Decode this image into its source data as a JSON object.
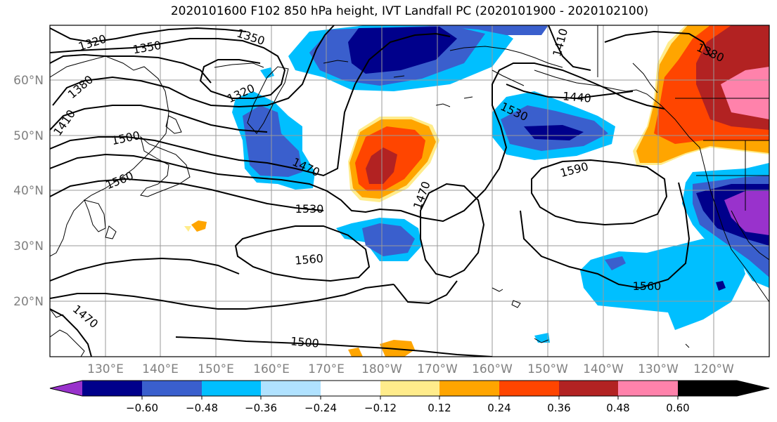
{
  "title": "2020101600 F102 850 hPa height, IVT Landfall PC (2020101900 - 2020102100)",
  "map": {
    "lat_labels": [
      "60°N",
      "50°N",
      "40°N",
      "30°N",
      "20°N"
    ],
    "lon_labels": [
      "130°E",
      "140°E",
      "150°E",
      "160°E",
      "170°E",
      "180°W",
      "170°W",
      "160°W",
      "150°W",
      "140°W",
      "130°W",
      "120°W"
    ],
    "contour_labels": [
      "1320",
      "1350",
      "1350",
      "1380",
      "1410",
      "1320",
      "1500",
      "1470",
      "1560",
      "1530",
      "1560",
      "1470",
      "1530",
      "1590",
      "1440",
      "1410",
      "1380",
      "1560",
      "1470",
      "1500"
    ],
    "tick_label_color": "#808080"
  },
  "colorbar": {
    "colors": [
      "#9932cc",
      "#00008b",
      "#3a5fcd",
      "#00bfff",
      "#b0e2ff",
      "#ffffff",
      "#ffec8b",
      "#ffa500",
      "#ff4500",
      "#b22222",
      "#ff82ab"
    ],
    "tick_labels": [
      "−0.60",
      "−0.48",
      "−0.36",
      "−0.24",
      "−0.12",
      "0.12",
      "0.24",
      "0.36",
      "0.48",
      "0.60"
    ],
    "levels": [
      -0.6,
      -0.48,
      -0.36,
      -0.24,
      -0.12,
      0.12,
      0.24,
      0.36,
      0.48,
      0.6
    ]
  }
}
